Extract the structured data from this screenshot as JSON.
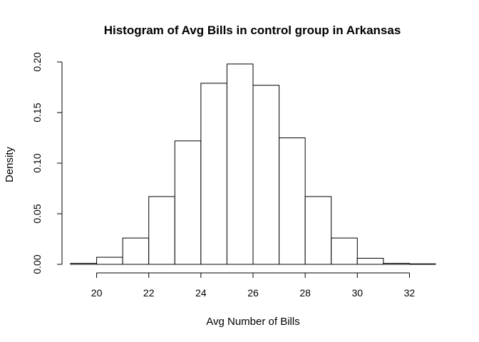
{
  "chart_data": {
    "type": "bar",
    "title": "Histogram of Avg Bills in control group in Arkansas",
    "xlabel": "Avg Number of Bills",
    "ylabel": "Density",
    "bin_edges": [
      19,
      20,
      21,
      22,
      23,
      24,
      25,
      26,
      27,
      28,
      29,
      30,
      31,
      32,
      33
    ],
    "values": [
      0.001,
      0.007,
      0.026,
      0.067,
      0.122,
      0.179,
      0.198,
      0.177,
      0.125,
      0.067,
      0.026,
      0.006,
      0.001,
      0.0005
    ],
    "xlim": [
      19,
      33
    ],
    "ylim": [
      0,
      0.2
    ],
    "x_ticks": [
      20,
      22,
      24,
      26,
      28,
      30,
      32
    ],
    "y_ticks": [
      "0.00",
      "0.05",
      "0.10",
      "0.15",
      "0.20"
    ],
    "grid": false,
    "legend": "none"
  }
}
